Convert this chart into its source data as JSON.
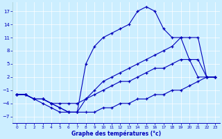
{
  "xlabel": "Graphe des températures (°c)",
  "bg_color": "#cceeff",
  "grid_color": "#aacccc",
  "line_color": "#0000bb",
  "xlim": [
    -0.5,
    23.5
  ],
  "ylim": [
    -8.5,
    19
  ],
  "xticks": [
    0,
    1,
    2,
    3,
    4,
    5,
    6,
    7,
    8,
    9,
    10,
    11,
    12,
    13,
    14,
    15,
    16,
    17,
    18,
    19,
    20,
    21,
    22,
    23
  ],
  "yticks": [
    -7,
    -4,
    -1,
    2,
    5,
    8,
    11,
    14,
    17
  ],
  "series": [
    {
      "x": [
        0,
        1,
        2,
        3,
        4,
        5,
        6,
        7,
        8,
        9,
        10,
        11,
        12,
        13,
        14,
        15,
        16,
        17,
        18,
        19,
        20,
        21,
        22,
        23
      ],
      "y": [
        -2,
        -2,
        -3,
        -3,
        -4,
        -5,
        -6,
        -6,
        5,
        9,
        11,
        12,
        13,
        14,
        17,
        18,
        17,
        13,
        11,
        11,
        6,
        2,
        2,
        2
      ]
    },
    {
      "x": [
        0,
        1,
        2,
        3,
        4,
        5,
        6,
        7,
        8,
        9,
        10,
        11,
        12,
        13,
        14,
        15,
        16,
        17,
        18,
        19,
        20,
        21,
        22,
        23
      ],
      "y": [
        -2,
        -2,
        -3,
        -3,
        -4,
        -5,
        -6,
        -6,
        -3,
        -1,
        1,
        2,
        3,
        4,
        5,
        6,
        7,
        8,
        9,
        11,
        11,
        11,
        2,
        2
      ]
    },
    {
      "x": [
        0,
        1,
        2,
        3,
        4,
        5,
        6,
        7,
        8,
        9,
        10,
        11,
        12,
        13,
        14,
        15,
        16,
        17,
        18,
        19,
        20,
        21,
        22,
        23
      ],
      "y": [
        -2,
        -2,
        -3,
        -3,
        -4,
        -4,
        -4,
        -4,
        -3,
        -2,
        -1,
        0,
        1,
        1,
        2,
        3,
        4,
        4,
        5,
        6,
        6,
        6,
        2,
        2
      ]
    },
    {
      "x": [
        0,
        1,
        2,
        3,
        4,
        5,
        6,
        7,
        8,
        9,
        10,
        11,
        12,
        13,
        14,
        15,
        16,
        17,
        18,
        19,
        20,
        21,
        22,
        23
      ],
      "y": [
        -2,
        -2,
        -3,
        -4,
        -5,
        -6,
        -6,
        -6,
        -6,
        -6,
        -5,
        -5,
        -4,
        -4,
        -3,
        -3,
        -2,
        -2,
        -1,
        -1,
        0,
        1,
        2,
        2
      ]
    }
  ]
}
